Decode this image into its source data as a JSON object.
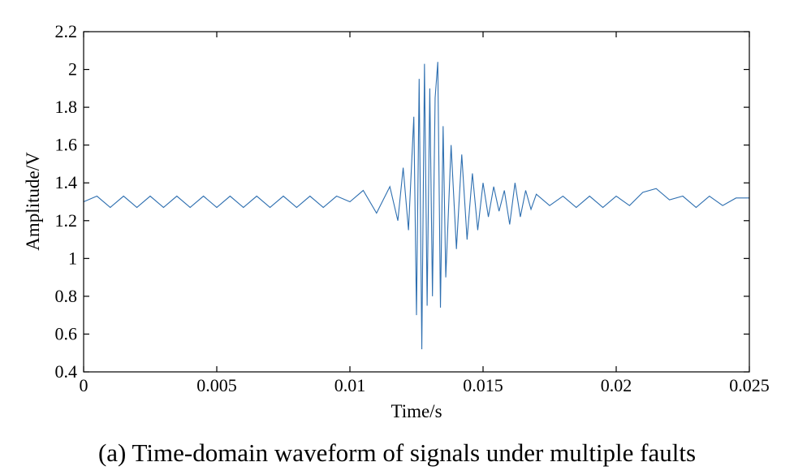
{
  "chart_data": {
    "type": "line",
    "title": "",
    "xlabel": "Time/s",
    "ylabel": "Amplitude/V",
    "xlim": [
      0,
      0.025
    ],
    "ylim": [
      0.4,
      2.2
    ],
    "xticks": [
      0,
      0.005,
      0.01,
      0.015,
      0.02,
      0.025
    ],
    "xtick_labels": [
      "0",
      "0.005",
      "0.01",
      "0.015",
      "0.02",
      "0.025"
    ],
    "yticks": [
      0.4,
      0.6,
      0.8,
      1,
      1.2,
      1.4,
      1.6,
      1.8,
      2,
      2.2
    ],
    "ytick_labels": [
      "0.4",
      "0.6",
      "0.8",
      "1",
      "1.2",
      "1.4",
      "1.6",
      "1.8",
      "2",
      "2.2"
    ],
    "grid": false,
    "legend": "none",
    "line_color": "#2e6fb0",
    "series": [
      {
        "name": "",
        "x": [
          0,
          0.0005,
          0.001,
          0.0015,
          0.002,
          0.0025,
          0.003,
          0.0035,
          0.004,
          0.0045,
          0.005,
          0.0055,
          0.006,
          0.0065,
          0.007,
          0.0075,
          0.008,
          0.0085,
          0.009,
          0.0095,
          0.01,
          0.0105,
          0.011,
          0.0115,
          0.0118,
          0.012,
          0.0122,
          0.0124,
          0.0125,
          0.0126,
          0.0127,
          0.0128,
          0.0129,
          0.013,
          0.0131,
          0.0132,
          0.0133,
          0.0134,
          0.0135,
          0.0136,
          0.0138,
          0.014,
          0.0142,
          0.0144,
          0.0146,
          0.0148,
          0.015,
          0.0152,
          0.0154,
          0.0156,
          0.0158,
          0.016,
          0.0162,
          0.0164,
          0.0166,
          0.0168,
          0.017,
          0.0175,
          0.018,
          0.0185,
          0.019,
          0.0195,
          0.02,
          0.0205,
          0.021,
          0.0215,
          0.022,
          0.0225,
          0.023,
          0.0235,
          0.024,
          0.0245,
          0.025
        ],
        "y": [
          1.3,
          1.33,
          1.27,
          1.33,
          1.27,
          1.33,
          1.27,
          1.33,
          1.27,
          1.33,
          1.27,
          1.33,
          1.27,
          1.33,
          1.27,
          1.33,
          1.27,
          1.33,
          1.27,
          1.33,
          1.3,
          1.36,
          1.24,
          1.38,
          1.2,
          1.48,
          1.15,
          1.75,
          0.7,
          1.95,
          0.52,
          2.03,
          0.75,
          1.9,
          0.8,
          1.85,
          2.04,
          0.74,
          1.7,
          0.9,
          1.6,
          1.05,
          1.55,
          1.1,
          1.45,
          1.15,
          1.4,
          1.22,
          1.38,
          1.25,
          1.36,
          1.18,
          1.4,
          1.22,
          1.36,
          1.26,
          1.34,
          1.28,
          1.33,
          1.27,
          1.33,
          1.27,
          1.33,
          1.28,
          1.35,
          1.37,
          1.31,
          1.33,
          1.27,
          1.33,
          1.28,
          1.32,
          1.32
        ]
      }
    ]
  },
  "caption": "(a) Time-domain waveform of signals under multiple faults"
}
